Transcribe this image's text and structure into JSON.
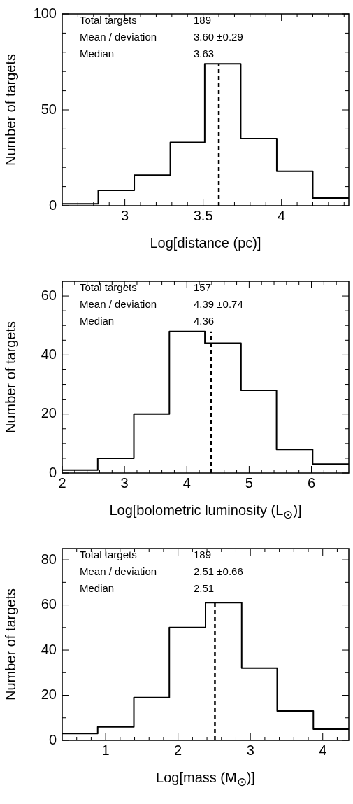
{
  "chart_data": [
    {
      "type": "histogram",
      "xlabel": "Log[distance (pc)]",
      "ylabel": "Number of targets",
      "bins": [
        2.6,
        2.83,
        3.06,
        3.29,
        3.51,
        3.74,
        3.97,
        4.2,
        4.43
      ],
      "values": [
        1,
        8,
        16,
        33,
        74,
        35,
        18,
        4
      ],
      "color": "#000000",
      "xlim": [
        2.6,
        4.43
      ],
      "ylim": [
        0,
        100
      ],
      "xticks": [
        {
          "value": 2.7,
          "label": null
        },
        {
          "value": 2.8,
          "label": null
        },
        {
          "value": 2.9,
          "label": null
        },
        3,
        {
          "value": 3.1,
          "label": null
        },
        {
          "value": 3.2,
          "label": null
        },
        {
          "value": 3.3,
          "label": null
        },
        {
          "value": 3.4,
          "label": null
        },
        3.5,
        {
          "value": 3.6,
          "label": null
        },
        {
          "value": 3.7,
          "label": null
        },
        {
          "value": 3.8,
          "label": null
        },
        {
          "value": 3.9,
          "label": null
        },
        4,
        {
          "value": 4.1,
          "label": null
        },
        {
          "value": 4.2,
          "label": null
        },
        {
          "value": 4.3,
          "label": null
        },
        {
          "value": 4.4,
          "label": null
        }
      ],
      "yticks": [
        0,
        {
          "value": 10,
          "label": null
        },
        {
          "value": 20,
          "label": null
        },
        {
          "value": 30,
          "label": null
        },
        {
          "value": 40,
          "label": null
        },
        50,
        {
          "value": 60,
          "label": null
        },
        {
          "value": 70,
          "label": null
        },
        {
          "value": 80,
          "label": null
        },
        {
          "value": 90,
          "label": null
        },
        100
      ],
      "ref_lines": [
        {
          "axis": "x",
          "value": 3.6,
          "line_style": "dashed",
          "color": "#000000"
        }
      ],
      "annotations": [
        "Total targets",
        "189",
        "Mean / deviation",
        "3.60 ±0.29",
        "Median",
        "3.63"
      ],
      "grid": false,
      "legend": false
    },
    {
      "type": "histogram",
      "xlabel": "Log[bolometric luminosity (L$_{⊙}$)]",
      "ylabel": "Number of targets",
      "bins": [
        2.0,
        2.57,
        3.15,
        3.72,
        4.29,
        4.87,
        5.44,
        6.02,
        6.6
      ],
      "values": [
        1,
        5,
        20,
        48,
        44,
        28,
        8,
        3
      ],
      "color": "#000000",
      "xlim": [
        2,
        6.6
      ],
      "ylim": [
        0,
        65
      ],
      "xticks": [
        2,
        {
          "value": 2.2,
          "label": null
        },
        {
          "value": 2.4,
          "label": null
        },
        {
          "value": 2.6,
          "label": null
        },
        {
          "value": 2.8,
          "label": null
        },
        3,
        {
          "value": 3.2,
          "label": null
        },
        {
          "value": 3.4,
          "label": null
        },
        {
          "value": 3.6,
          "label": null
        },
        {
          "value": 3.8,
          "label": null
        },
        4,
        {
          "value": 4.2,
          "label": null
        },
        {
          "value": 4.4,
          "label": null
        },
        {
          "value": 4.6,
          "label": null
        },
        {
          "value": 4.8,
          "label": null
        },
        5,
        {
          "value": 5.2,
          "label": null
        },
        {
          "value": 5.4,
          "label": null
        },
        {
          "value": 5.6,
          "label": null
        },
        {
          "value": 5.8,
          "label": null
        },
        6,
        {
          "value": 6.2,
          "label": null
        },
        {
          "value": 6.4,
          "label": null
        }
      ],
      "yticks": [
        0,
        {
          "value": 5,
          "label": null
        },
        {
          "value": 10,
          "label": null
        },
        {
          "value": 15,
          "label": null
        },
        20,
        {
          "value": 25,
          "label": null
        },
        {
          "value": 30,
          "label": null
        },
        {
          "value": 35,
          "label": null
        },
        40,
        {
          "value": 45,
          "label": null
        },
        {
          "value": 50,
          "label": null
        },
        {
          "value": 55,
          "label": null
        },
        60
      ],
      "ref_lines": [
        {
          "axis": "x",
          "value": 4.39,
          "line_style": "dashed",
          "color": "#000000"
        }
      ],
      "annotations": [
        "Total targets",
        "157",
        "Mean / deviation",
        "4.39 ±0.74",
        "Median",
        "4.36"
      ],
      "grid": false,
      "legend": false
    },
    {
      "type": "histogram",
      "xlabel": "Log[mass (M$_{⊙}$)]",
      "ylabel": "Number of targets",
      "bins": [
        0.4,
        0.89,
        1.39,
        1.88,
        2.38,
        2.88,
        3.37,
        3.87,
        4.36
      ],
      "values": [
        3,
        6,
        19,
        50,
        61,
        32,
        13,
        5
      ],
      "color": "#000000",
      "xlim": [
        0.4,
        4.36
      ],
      "ylim": [
        0,
        85
      ],
      "xticks": [
        {
          "value": 0.6,
          "label": null
        },
        {
          "value": 0.8,
          "label": null
        },
        1,
        {
          "value": 1.2,
          "label": null
        },
        {
          "value": 1.4,
          "label": null
        },
        {
          "value": 1.6,
          "label": null
        },
        {
          "value": 1.8,
          "label": null
        },
        2,
        {
          "value": 2.2,
          "label": null
        },
        {
          "value": 2.4,
          "label": null
        },
        {
          "value": 2.6,
          "label": null
        },
        {
          "value": 2.8,
          "label": null
        },
        3,
        {
          "value": 3.2,
          "label": null
        },
        {
          "value": 3.4,
          "label": null
        },
        {
          "value": 3.6,
          "label": null
        },
        {
          "value": 3.8,
          "label": null
        },
        4,
        {
          "value": 4.2,
          "label": null
        }
      ],
      "yticks": [
        0,
        {
          "value": 10,
          "label": null
        },
        20,
        {
          "value": 30,
          "label": null
        },
        40,
        {
          "value": 50,
          "label": null
        },
        60,
        {
          "value": 70,
          "label": null
        },
        80
      ],
      "ref_lines": [
        {
          "axis": "x",
          "value": 2.51,
          "line_style": "dashed",
          "color": "#000000"
        }
      ],
      "annotations": [
        "Total targets",
        "189",
        "Mean / deviation",
        "2.51 ±0.66",
        "Median",
        "2.51"
      ],
      "grid": false,
      "legend": false
    }
  ]
}
